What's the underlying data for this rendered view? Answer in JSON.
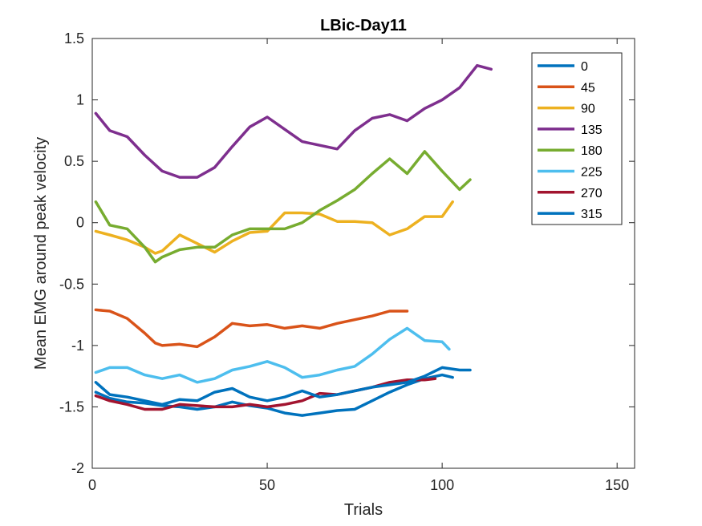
{
  "chart_data": {
    "type": "line",
    "title": "LBic-Day11",
    "xlabel": "Trials",
    "ylabel": "Mean EMG around peak velocity",
    "xlim": [
      0,
      155
    ],
    "ylim": [
      -2,
      1.5
    ],
    "xticks": [
      0,
      50,
      100,
      150
    ],
    "yticks": [
      -2,
      -1.5,
      -1,
      -0.5,
      0,
      0.5,
      1,
      1.5
    ],
    "xtick_labels": [
      "0",
      "50",
      "100",
      "150"
    ],
    "ytick_labels": [
      "-2",
      "-1.5",
      "-1",
      "-0.5",
      "0",
      "0.5",
      "1",
      "1.5"
    ],
    "grid": false,
    "legend_position": "top-right",
    "series": [
      {
        "name": "0",
        "color": "#0072BD",
        "x": [
          1,
          5,
          10,
          15,
          20,
          25,
          30,
          35,
          40,
          45,
          50,
          55,
          60,
          65,
          70,
          75,
          80,
          85,
          90,
          95,
          100,
          103
        ],
        "y": [
          -1.38,
          -1.43,
          -1.46,
          -1.47,
          -1.49,
          -1.5,
          -1.52,
          -1.5,
          -1.46,
          -1.49,
          -1.51,
          -1.55,
          -1.57,
          -1.55,
          -1.53,
          -1.52,
          -1.45,
          -1.38,
          -1.32,
          -1.27,
          -1.24,
          -1.26
        ]
      },
      {
        "name": "45",
        "color": "#D95319",
        "x": [
          1,
          5,
          10,
          15,
          18,
          20,
          25,
          30,
          35,
          40,
          45,
          50,
          55,
          60,
          65,
          70,
          75,
          80,
          85,
          90
        ],
        "y": [
          -0.71,
          -0.72,
          -0.78,
          -0.9,
          -0.98,
          -1.0,
          -0.99,
          -1.01,
          -0.93,
          -0.82,
          -0.84,
          -0.83,
          -0.86,
          -0.84,
          -0.86,
          -0.82,
          -0.79,
          -0.76,
          -0.72,
          -0.72
        ]
      },
      {
        "name": "90",
        "color": "#EDB120",
        "x": [
          1,
          5,
          10,
          15,
          18,
          20,
          25,
          30,
          35,
          40,
          45,
          50,
          55,
          60,
          65,
          70,
          75,
          80,
          85,
          90,
          95,
          100,
          103
        ],
        "y": [
          -0.07,
          -0.1,
          -0.14,
          -0.2,
          -0.25,
          -0.23,
          -0.1,
          -0.17,
          -0.24,
          -0.15,
          -0.08,
          -0.07,
          0.08,
          0.08,
          0.07,
          0.01,
          0.01,
          0.0,
          -0.1,
          -0.05,
          0.05,
          0.05,
          0.17
        ]
      },
      {
        "name": "135",
        "color": "#7E2F8E",
        "x": [
          1,
          5,
          10,
          15,
          20,
          25,
          30,
          35,
          40,
          45,
          50,
          55,
          60,
          65,
          70,
          75,
          80,
          85,
          90,
          95,
          100,
          105,
          110,
          114
        ],
        "y": [
          0.89,
          0.75,
          0.7,
          0.55,
          0.42,
          0.37,
          0.37,
          0.45,
          0.62,
          0.78,
          0.86,
          0.76,
          0.66,
          0.63,
          0.6,
          0.75,
          0.85,
          0.88,
          0.83,
          0.93,
          1.0,
          1.1,
          1.28,
          1.25
        ]
      },
      {
        "name": "180",
        "color": "#77AC30",
        "x": [
          1,
          5,
          10,
          15,
          18,
          20,
          25,
          30,
          35,
          40,
          45,
          50,
          55,
          60,
          65,
          70,
          75,
          80,
          85,
          90,
          95,
          100,
          105,
          108
        ],
        "y": [
          0.17,
          -0.02,
          -0.05,
          -0.2,
          -0.32,
          -0.28,
          -0.22,
          -0.2,
          -0.2,
          -0.1,
          -0.05,
          -0.05,
          -0.05,
          0.0,
          0.1,
          0.18,
          0.27,
          0.4,
          0.52,
          0.4,
          0.58,
          0.42,
          0.27,
          0.35
        ]
      },
      {
        "name": "225",
        "color": "#4DBEEE",
        "x": [
          1,
          5,
          10,
          15,
          20,
          25,
          30,
          35,
          40,
          45,
          50,
          55,
          60,
          65,
          70,
          75,
          80,
          85,
          90,
          95,
          100,
          102
        ],
        "y": [
          -1.22,
          -1.18,
          -1.18,
          -1.24,
          -1.27,
          -1.24,
          -1.3,
          -1.27,
          -1.2,
          -1.17,
          -1.13,
          -1.18,
          -1.26,
          -1.24,
          -1.2,
          -1.17,
          -1.07,
          -0.95,
          -0.86,
          -0.96,
          -0.97,
          -1.03
        ]
      },
      {
        "name": "270",
        "color": "#A2142F",
        "x": [
          1,
          5,
          10,
          15,
          20,
          25,
          30,
          35,
          40,
          45,
          50,
          55,
          60,
          65,
          70,
          75,
          80,
          85,
          90,
          95,
          98
        ],
        "y": [
          -1.41,
          -1.45,
          -1.48,
          -1.52,
          -1.52,
          -1.48,
          -1.49,
          -1.5,
          -1.5,
          -1.48,
          -1.5,
          -1.48,
          -1.45,
          -1.39,
          -1.4,
          -1.37,
          -1.34,
          -1.3,
          -1.28,
          -1.28,
          -1.27
        ]
      },
      {
        "name": "315",
        "color": "#0072BD",
        "x": [
          1,
          5,
          10,
          15,
          20,
          25,
          30,
          35,
          40,
          45,
          50,
          55,
          60,
          65,
          70,
          75,
          80,
          85,
          90,
          95,
          100,
          105,
          108
        ],
        "y": [
          -1.3,
          -1.4,
          -1.42,
          -1.45,
          -1.48,
          -1.44,
          -1.45,
          -1.38,
          -1.35,
          -1.42,
          -1.45,
          -1.42,
          -1.37,
          -1.42,
          -1.4,
          -1.37,
          -1.34,
          -1.32,
          -1.3,
          -1.25,
          -1.18,
          -1.2,
          -1.2
        ]
      }
    ]
  }
}
